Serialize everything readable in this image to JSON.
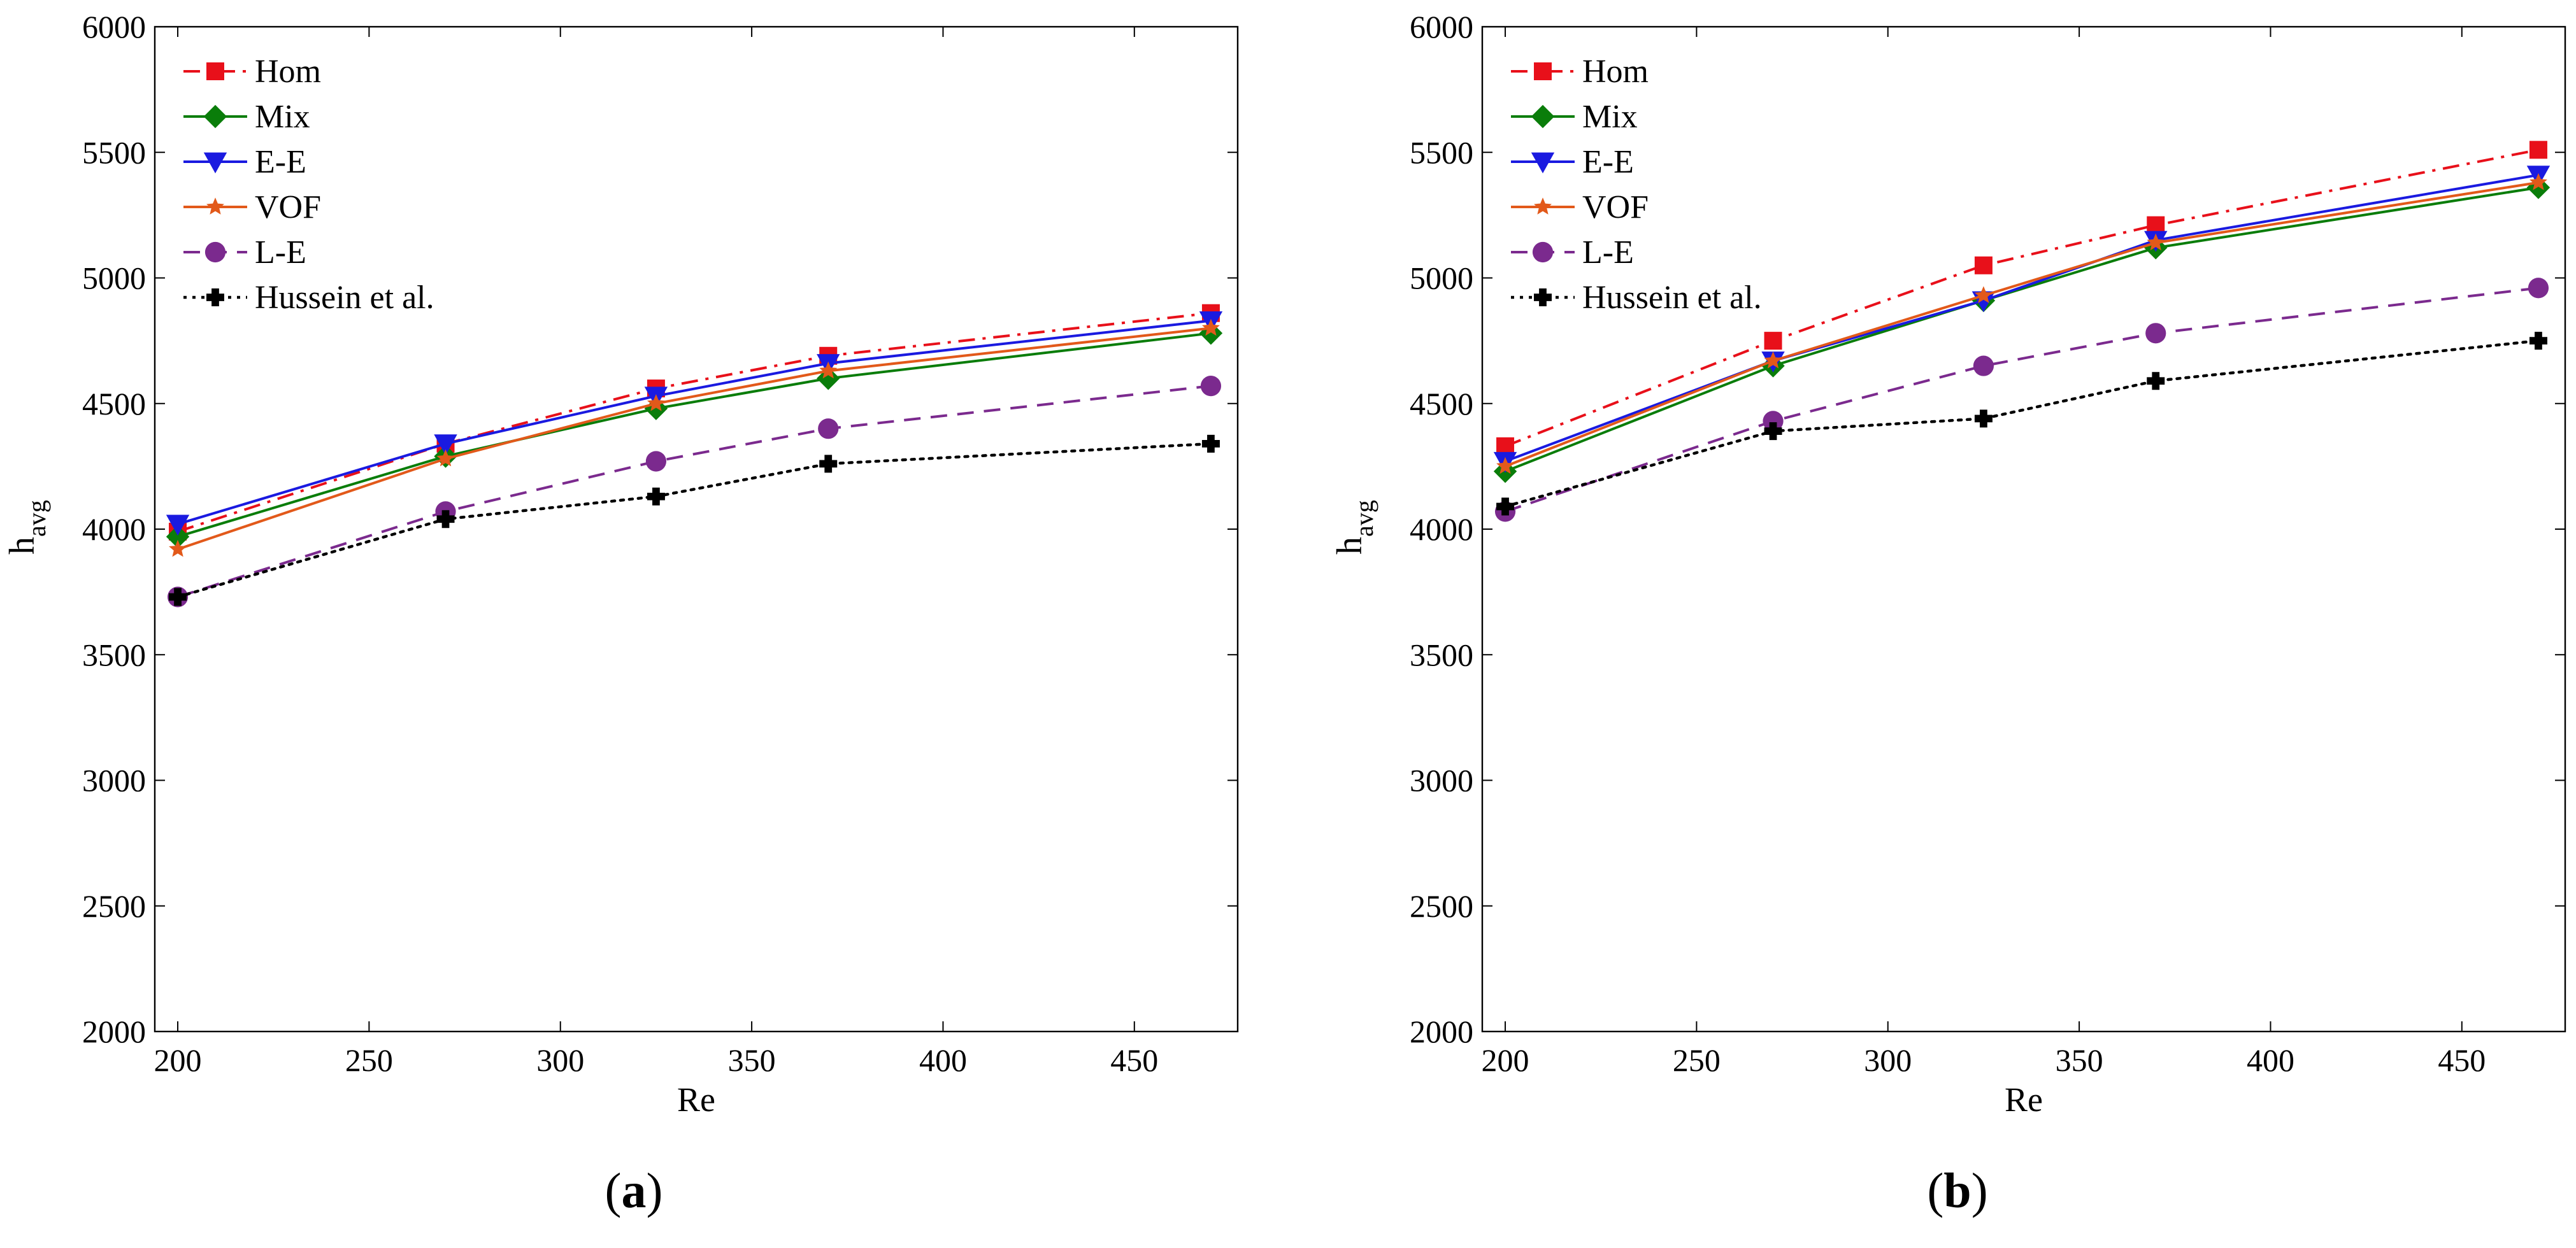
{
  "chart_data": [
    {
      "type": "line",
      "panel": "a",
      "caption": "(a)",
      "caption_letter": "a",
      "xlabel": "Re",
      "ylabel": "h",
      "ylabel_sub": "avg",
      "xlim": [
        194,
        477
      ],
      "ylim": [
        2000,
        6000
      ],
      "xticks": [
        200,
        250,
        300,
        350,
        400,
        450
      ],
      "yticks": [
        2000,
        2500,
        3000,
        3500,
        4000,
        4500,
        5000,
        5500,
        6000
      ],
      "grid": false,
      "legend_position": "top-left",
      "x": [
        200,
        270,
        325,
        370,
        470
      ],
      "series": [
        {
          "name": "Hom",
          "color": "#e8101a",
          "dash": "dashdot",
          "marker": "square",
          "values": [
            3990,
            4340,
            4560,
            4690,
            4860
          ]
        },
        {
          "name": "Mix",
          "color": "#0a7d0a",
          "dash": "solid",
          "marker": "diamond",
          "values": [
            3970,
            4290,
            4480,
            4600,
            4780
          ]
        },
        {
          "name": "E-E",
          "color": "#1a1ae0",
          "dash": "solid",
          "marker": "triangle-down",
          "values": [
            4020,
            4340,
            4530,
            4660,
            4830
          ]
        },
        {
          "name": "VOF",
          "color": "#e2591a",
          "dash": "solid",
          "marker": "star",
          "values": [
            3920,
            4280,
            4500,
            4630,
            4800
          ]
        },
        {
          "name": "L-E",
          "color": "#7b2a8e",
          "dash": "dashed",
          "marker": "circle",
          "values": [
            3730,
            4070,
            4270,
            4400,
            4570
          ]
        },
        {
          "name": "Hussein et al.",
          "color": "#000000",
          "dash": "dotted",
          "marker": "plus",
          "values": [
            3730,
            4040,
            4130,
            4260,
            4340
          ]
        }
      ]
    },
    {
      "type": "line",
      "panel": "b",
      "caption": "(b)",
      "caption_letter": "b",
      "xlabel": "Re",
      "ylabel": "h",
      "ylabel_sub": "avg",
      "xlim": [
        194,
        477
      ],
      "ylim": [
        2000,
        6000
      ],
      "xticks": [
        200,
        250,
        300,
        350,
        400,
        450
      ],
      "yticks": [
        2000,
        2500,
        3000,
        3500,
        4000,
        4500,
        5000,
        5500,
        6000
      ],
      "grid": false,
      "legend_position": "top-left",
      "x": [
        200,
        270,
        325,
        370,
        470
      ],
      "series": [
        {
          "name": "Hom",
          "color": "#e8101a",
          "dash": "dashdot",
          "marker": "square",
          "values": [
            4330,
            4750,
            5050,
            5210,
            5510
          ]
        },
        {
          "name": "Mix",
          "color": "#0a7d0a",
          "dash": "solid",
          "marker": "diamond",
          "values": [
            4230,
            4650,
            4910,
            5120,
            5360
          ]
        },
        {
          "name": "E-E",
          "color": "#1a1ae0",
          "dash": "solid",
          "marker": "triangle-down",
          "values": [
            4270,
            4670,
            4910,
            5150,
            5410
          ]
        },
        {
          "name": "VOF",
          "color": "#e2591a",
          "dash": "solid",
          "marker": "star",
          "values": [
            4250,
            4670,
            4930,
            5140,
            5380
          ]
        },
        {
          "name": "L-E",
          "color": "#7b2a8e",
          "dash": "dashed",
          "marker": "circle",
          "values": [
            4070,
            4430,
            4650,
            4780,
            4960
          ]
        },
        {
          "name": "Hussein et al.",
          "color": "#000000",
          "dash": "dotted",
          "marker": "plus",
          "values": [
            4090,
            4390,
            4440,
            4590,
            4750
          ]
        }
      ]
    }
  ]
}
